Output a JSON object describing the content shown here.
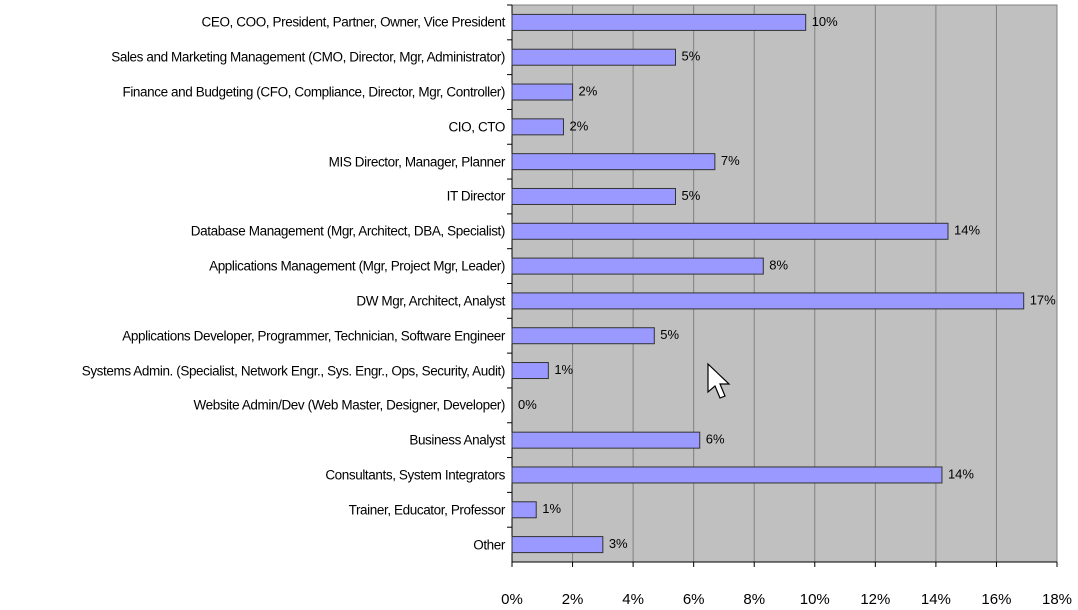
{
  "chart_data": {
    "type": "bar",
    "orientation": "horizontal",
    "categories": [
      "CEO, COO, President, Partner, Owner, Vice President",
      "Sales and Marketing Management (CMO, Director, Mgr, Administrator)",
      "Finance and Budgeting (CFO, Compliance, Director, Mgr, Controller)",
      "CIO, CTO",
      "MIS Director, Manager, Planner",
      "IT Director",
      "Database Management (Mgr, Architect, DBA, Specialist)",
      "Applications Management (Mgr, Project Mgr, Leader)",
      "DW Mgr, Architect, Analyst",
      "Applications Developer, Programmer, Technician, Software Engineer",
      "Systems Admin. (Specialist, Network Engr., Sys. Engr., Ops, Security, Audit)",
      "Website Admin/Dev (Web Master, Designer, Developer)",
      "Business Analyst",
      "Consultants, System Integrators",
      "Trainer, Educator, Professor",
      "Other"
    ],
    "values": [
      9.7,
      5.4,
      2.0,
      1.7,
      6.7,
      5.4,
      14.4,
      8.3,
      16.9,
      4.7,
      1.2,
      0,
      6.2,
      14.2,
      0.8,
      3.0
    ],
    "value_labels": [
      "10%",
      "5%",
      "2%",
      "2%",
      "7%",
      "5%",
      "14%",
      "8%",
      "17%",
      "5%",
      "1%",
      "0%",
      "6%",
      "14%",
      "1%",
      "3%"
    ],
    "color": "#9999ff",
    "xlim": [
      0,
      18
    ],
    "xticks": [
      {
        "value": 0,
        "label": "0%"
      },
      {
        "value": 2,
        "label": "2%"
      },
      {
        "value": 4,
        "label": "4%"
      },
      {
        "value": 6,
        "label": "6%"
      },
      {
        "value": 8,
        "label": "8%"
      },
      {
        "value": 10,
        "label": "10%"
      },
      {
        "value": 12,
        "label": "12%"
      },
      {
        "value": 14,
        "label": "14%"
      },
      {
        "value": 16,
        "label": "16%"
      },
      {
        "value": 18,
        "label": "18%"
      }
    ],
    "grid": true
  }
}
